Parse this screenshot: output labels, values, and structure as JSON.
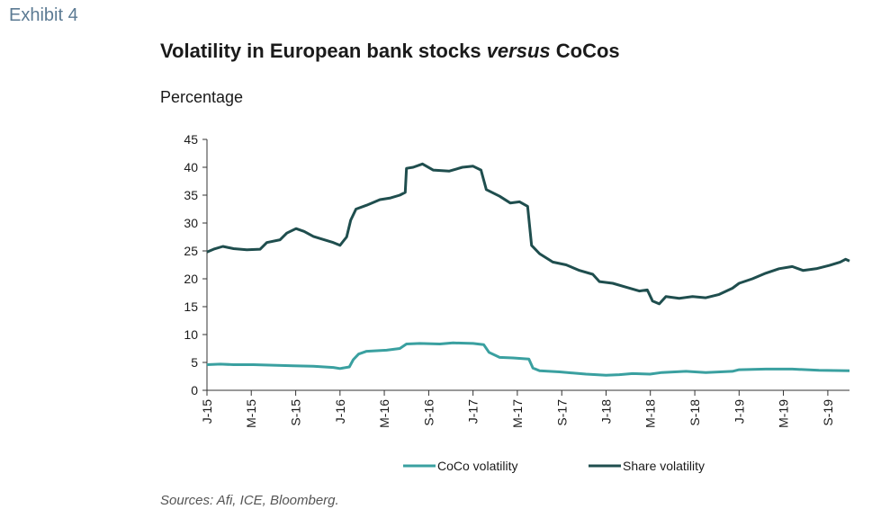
{
  "exhibit_label": "Exhibit 4",
  "title_part1": "Volatility in European bank stocks ",
  "title_italic": "versus",
  "title_part2": " CoCos",
  "source": "Sources: Afi, ICE, Bloomberg.",
  "chart_data": {
    "type": "line",
    "ylabel": "Percentage",
    "xlabel": "",
    "ylim": [
      0,
      45
    ],
    "yticks": [
      0,
      5,
      10,
      15,
      20,
      25,
      30,
      35,
      40,
      45
    ],
    "xlim": [
      2015.0,
      2019.83
    ],
    "xticks": [
      {
        "label": "J-15",
        "x": 2015.0
      },
      {
        "label": "M-15",
        "x": 2015.333
      },
      {
        "label": "S-15",
        "x": 2015.667
      },
      {
        "label": "J-16",
        "x": 2016.0
      },
      {
        "label": "M-16",
        "x": 2016.333
      },
      {
        "label": "S-16",
        "x": 2016.667
      },
      {
        "label": "J-17",
        "x": 2017.0
      },
      {
        "label": "M-17",
        "x": 2017.333
      },
      {
        "label": "S-17",
        "x": 2017.667
      },
      {
        "label": "J-18",
        "x": 2018.0
      },
      {
        "label": "M-18",
        "x": 2018.333
      },
      {
        "label": "S-18",
        "x": 2018.667
      },
      {
        "label": "J-19",
        "x": 2019.0
      },
      {
        "label": "M-19",
        "x": 2019.333
      },
      {
        "label": "S-19",
        "x": 2019.667
      }
    ],
    "legend_position": "bottom",
    "series": [
      {
        "name": "CoCo volatility",
        "color": "#3aa0a0",
        "points": [
          [
            2015.0,
            4.6
          ],
          [
            2015.1,
            4.7
          ],
          [
            2015.2,
            4.6
          ],
          [
            2015.35,
            4.6
          ],
          [
            2015.5,
            4.5
          ],
          [
            2015.65,
            4.4
          ],
          [
            2015.8,
            4.3
          ],
          [
            2015.95,
            4.1
          ],
          [
            2016.0,
            3.9
          ],
          [
            2016.07,
            4.2
          ],
          [
            2016.1,
            5.5
          ],
          [
            2016.14,
            6.5
          ],
          [
            2016.2,
            7.0
          ],
          [
            2016.35,
            7.2
          ],
          [
            2016.45,
            7.5
          ],
          [
            2016.5,
            8.3
          ],
          [
            2016.6,
            8.4
          ],
          [
            2016.75,
            8.3
          ],
          [
            2016.85,
            8.5
          ],
          [
            2017.0,
            8.4
          ],
          [
            2017.08,
            8.2
          ],
          [
            2017.12,
            6.8
          ],
          [
            2017.2,
            5.9
          ],
          [
            2017.3,
            5.8
          ],
          [
            2017.42,
            5.6
          ],
          [
            2017.45,
            4.0
          ],
          [
            2017.5,
            3.5
          ],
          [
            2017.65,
            3.3
          ],
          [
            2017.85,
            2.9
          ],
          [
            2018.0,
            2.7
          ],
          [
            2018.1,
            2.8
          ],
          [
            2018.2,
            3.0
          ],
          [
            2018.33,
            2.9
          ],
          [
            2018.42,
            3.2
          ],
          [
            2018.6,
            3.4
          ],
          [
            2018.75,
            3.2
          ],
          [
            2018.95,
            3.4
          ],
          [
            2019.0,
            3.7
          ],
          [
            2019.2,
            3.8
          ],
          [
            2019.4,
            3.8
          ],
          [
            2019.6,
            3.6
          ],
          [
            2019.83,
            3.5
          ]
        ]
      },
      {
        "name": "Share volatility",
        "color": "#1f4e4e",
        "points": [
          [
            2015.0,
            24.8
          ],
          [
            2015.05,
            25.3
          ],
          [
            2015.12,
            25.8
          ],
          [
            2015.2,
            25.4
          ],
          [
            2015.3,
            25.2
          ],
          [
            2015.4,
            25.3
          ],
          [
            2015.45,
            26.5
          ],
          [
            2015.55,
            27.0
          ],
          [
            2015.6,
            28.2
          ],
          [
            2015.67,
            29.0
          ],
          [
            2015.73,
            28.5
          ],
          [
            2015.8,
            27.6
          ],
          [
            2015.88,
            27.0
          ],
          [
            2015.95,
            26.5
          ],
          [
            2016.0,
            26.0
          ],
          [
            2016.05,
            27.5
          ],
          [
            2016.08,
            30.5
          ],
          [
            2016.12,
            32.5
          ],
          [
            2016.2,
            33.2
          ],
          [
            2016.3,
            34.2
          ],
          [
            2016.38,
            34.5
          ],
          [
            2016.45,
            35.0
          ],
          [
            2016.49,
            35.5
          ],
          [
            2016.5,
            39.8
          ],
          [
            2016.55,
            40.0
          ],
          [
            2016.62,
            40.6
          ],
          [
            2016.7,
            39.5
          ],
          [
            2016.82,
            39.3
          ],
          [
            2016.92,
            40.0
          ],
          [
            2017.0,
            40.2
          ],
          [
            2017.06,
            39.5
          ],
          [
            2017.1,
            36.0
          ],
          [
            2017.2,
            34.8
          ],
          [
            2017.28,
            33.6
          ],
          [
            2017.35,
            33.8
          ],
          [
            2017.41,
            33.0
          ],
          [
            2017.44,
            26.0
          ],
          [
            2017.5,
            24.5
          ],
          [
            2017.6,
            23.0
          ],
          [
            2017.7,
            22.5
          ],
          [
            2017.8,
            21.5
          ],
          [
            2017.9,
            20.8
          ],
          [
            2017.95,
            19.5
          ],
          [
            2018.05,
            19.2
          ],
          [
            2018.15,
            18.5
          ],
          [
            2018.25,
            17.8
          ],
          [
            2018.31,
            18.0
          ],
          [
            2018.35,
            16.0
          ],
          [
            2018.4,
            15.5
          ],
          [
            2018.45,
            16.8
          ],
          [
            2018.55,
            16.5
          ],
          [
            2018.65,
            16.8
          ],
          [
            2018.75,
            16.6
          ],
          [
            2018.85,
            17.2
          ],
          [
            2018.95,
            18.3
          ],
          [
            2019.0,
            19.2
          ],
          [
            2019.1,
            20.0
          ],
          [
            2019.2,
            21.0
          ],
          [
            2019.3,
            21.8
          ],
          [
            2019.4,
            22.2
          ],
          [
            2019.48,
            21.5
          ],
          [
            2019.58,
            21.8
          ],
          [
            2019.68,
            22.4
          ],
          [
            2019.76,
            23.0
          ],
          [
            2019.8,
            23.5
          ],
          [
            2019.83,
            23.2
          ]
        ]
      }
    ]
  }
}
